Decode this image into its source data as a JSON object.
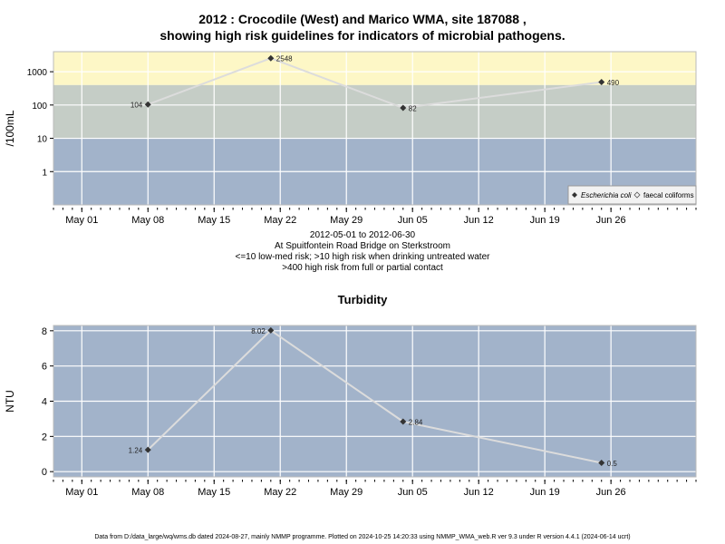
{
  "top_chart": {
    "title_line1": "2012 : Crocodile (West) and Marico WMA, site 187088 ,",
    "title_line2": "showing high risk guidelines for indicators of microbial pathogens.",
    "caption_lines": [
      "2012-05-01 to 2012-06-30",
      "At Spuitfontein Road Bridge on Sterkstroom",
      "<=10 low-med risk; >10 high risk when drinking untreated water",
      ">400 high risk from full or partial contact"
    ],
    "legend": {
      "ecoli": "Escherichia coli",
      "faecal": "faecal coliforms"
    }
  },
  "bottom_chart": {
    "title": "Turbidity"
  },
  "footer": "Data from D:/data_large/wq/wms.db dated 2024-08-27, mainly NMMP programme. Plotted on 2024-10-25 14:20:33 using NMMP_WMA_web.R ver 9.3 under R version 4.4.1 (2024-06-14 ucrt)",
  "chart_data": [
    {
      "type": "line",
      "title": "2012 : Crocodile (West) and Marico WMA, site 187088 , showing high risk guidelines for indicators of microbial pathogens.",
      "xlabel": "",
      "ylabel": "/100mL",
      "y_scale": "log10",
      "xlim": [
        "2012-04-28",
        "2012-07-05"
      ],
      "ylim": [
        0.1,
        4000
      ],
      "x_ticks": [
        "May 01",
        "May 08",
        "May 15",
        "May 22",
        "May 29",
        "Jun 05",
        "Jun 12",
        "Jun 19",
        "Jun 26"
      ],
      "x_tick_dates": [
        "2012-05-01",
        "2012-05-08",
        "2012-05-15",
        "2012-05-22",
        "2012-05-29",
        "2012-06-05",
        "2012-06-12",
        "2012-06-19",
        "2012-06-26"
      ],
      "y_ticks": [
        1,
        10,
        100,
        1000
      ],
      "y_tick_labels": [
        "1",
        "10",
        "100",
        "1000"
      ],
      "grid": true,
      "risk_bands": [
        {
          "from": 0.1,
          "to": 10,
          "color": "#a2b3ca"
        },
        {
          "from": 10,
          "to": 400,
          "color": "#c5cdc6"
        },
        {
          "from": 400,
          "to": 4000,
          "color": "#fdf7c6"
        }
      ],
      "legend_position": "bottom-right",
      "series": [
        {
          "name": "Escherichia coli",
          "x": [
            "2012-05-08",
            "2012-05-21",
            "2012-06-04",
            "2012-06-25"
          ],
          "values": [
            104,
            2548,
            82,
            490
          ],
          "labels": [
            "104",
            "2548",
            "82",
            "490"
          ],
          "line_color": "#dcdcdc",
          "marker_color": "#333333"
        }
      ]
    },
    {
      "type": "line",
      "title": "Turbidity",
      "xlabel": "",
      "ylabel": "NTU",
      "xlim": [
        "2012-04-28",
        "2012-07-05"
      ],
      "ylim": [
        -0.3,
        8.3
      ],
      "x_ticks": [
        "May 01",
        "May 08",
        "May 15",
        "May 22",
        "May 29",
        "Jun 05",
        "Jun 12",
        "Jun 19",
        "Jun 26"
      ],
      "x_tick_dates": [
        "2012-05-01",
        "2012-05-08",
        "2012-05-15",
        "2012-05-22",
        "2012-05-29",
        "2012-06-05",
        "2012-06-12",
        "2012-06-19",
        "2012-06-26"
      ],
      "y_ticks": [
        0,
        2,
        4,
        6,
        8
      ],
      "y_tick_labels": [
        "0",
        "2",
        "4",
        "6",
        "8"
      ],
      "grid": true,
      "background": "#a2b3ca",
      "series": [
        {
          "x": [
            "2012-05-08",
            "2012-05-21",
            "2012-06-04",
            "2012-06-25"
          ],
          "values": [
            1.24,
            8.02,
            2.84,
            0.5
          ],
          "labels": [
            "1.24",
            "8.02",
            "2.84",
            "0.5"
          ],
          "line_color": "#dcdcdc",
          "marker_color": "#333333"
        }
      ]
    }
  ]
}
